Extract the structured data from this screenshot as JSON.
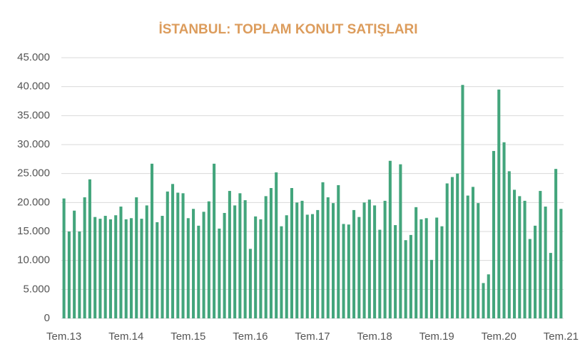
{
  "chart_data": {
    "type": "bar",
    "title": "İSTANBUL: TOPLAM KONUT SATIŞLARI",
    "categories": [
      "Tem.13",
      null,
      null,
      null,
      null,
      null,
      null,
      null,
      null,
      null,
      null,
      null,
      "Tem.14",
      null,
      null,
      null,
      null,
      null,
      null,
      null,
      null,
      null,
      null,
      null,
      "Tem.15",
      null,
      null,
      null,
      null,
      null,
      null,
      null,
      null,
      null,
      null,
      null,
      "Tem.16",
      null,
      null,
      null,
      null,
      null,
      null,
      null,
      null,
      null,
      null,
      null,
      "Tem.17",
      null,
      null,
      null,
      null,
      null,
      null,
      null,
      null,
      null,
      null,
      null,
      "Tem.18",
      null,
      null,
      null,
      null,
      null,
      null,
      null,
      null,
      null,
      null,
      null,
      "Tem.19",
      null,
      null,
      null,
      null,
      null,
      null,
      null,
      null,
      null,
      null,
      null,
      "Tem.20",
      null,
      null,
      null,
      null,
      null,
      null,
      null,
      null,
      null,
      null,
      null,
      "Tem.21"
    ],
    "values": [
      20700,
      15000,
      18600,
      15000,
      20900,
      24000,
      17500,
      17200,
      17700,
      17100,
      17800,
      19300,
      17100,
      17300,
      20900,
      17200,
      19500,
      26700,
      16600,
      17700,
      21900,
      23200,
      21700,
      21600,
      17300,
      18900,
      16000,
      18400,
      20200,
      26700,
      15500,
      18200,
      22000,
      19500,
      21600,
      20400,
      12000,
      17600,
      17100,
      21100,
      22500,
      25200,
      15900,
      17800,
      22500,
      20000,
      20300,
      17900,
      18000,
      18700,
      23500,
      20900,
      19900,
      23000,
      16300,
      16200,
      18700,
      17500,
      20000,
      20500,
      19500,
      15300,
      20300,
      27200,
      16100,
      26600,
      13500,
      14400,
      19200,
      17100,
      17300,
      10100,
      17400,
      15900,
      23300,
      24400,
      25000,
      40300,
      21200,
      22700,
      19900,
      6100,
      7600,
      28900,
      39500,
      30400,
      25400,
      22200,
      21100,
      20300,
      13700,
      16000,
      22000,
      19300,
      11300,
      25800,
      18900
    ],
    "color": "#43a57c",
    "ylim": [
      0,
      45000
    ],
    "yticks": [
      0,
      {
        "value": 5000,
        "label": "5.000"
      },
      {
        "value": 10000,
        "label": "10.000"
      },
      {
        "value": 15000,
        "label": "15.000"
      },
      {
        "value": 20000,
        "label": "20.000"
      },
      {
        "value": 25000,
        "label": "25.000"
      },
      {
        "value": 30000,
        "label": "30.000"
      },
      {
        "value": 35000,
        "label": "35.000"
      },
      {
        "value": 40000,
        "label": "40.000"
      },
      {
        "value": 45000,
        "label": "45.000"
      }
    ],
    "grid": true
  }
}
